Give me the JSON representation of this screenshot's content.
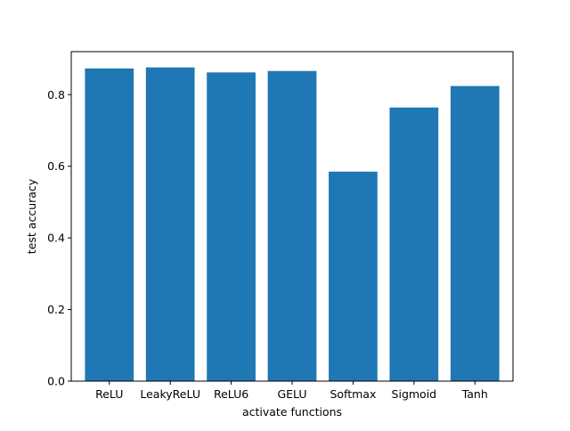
{
  "chart_data": {
    "type": "bar",
    "categories": [
      "ReLU",
      "LeakyReLU",
      "ReLU6",
      "GELU",
      "Softmax",
      "Sigmoid",
      "Tanh"
    ],
    "values": [
      0.873,
      0.876,
      0.862,
      0.866,
      0.585,
      0.764,
      0.824
    ],
    "title": "",
    "xlabel": "activate functions",
    "ylabel": "test accuracy",
    "ylim": [
      0,
      0.92
    ],
    "yticks": [
      0.0,
      0.2,
      0.4,
      0.6,
      0.8
    ],
    "ytick_labels": [
      "0.0",
      "0.2",
      "0.4",
      "0.6",
      "0.8"
    ],
    "grid": false,
    "bar_color": "#1f77b4"
  }
}
